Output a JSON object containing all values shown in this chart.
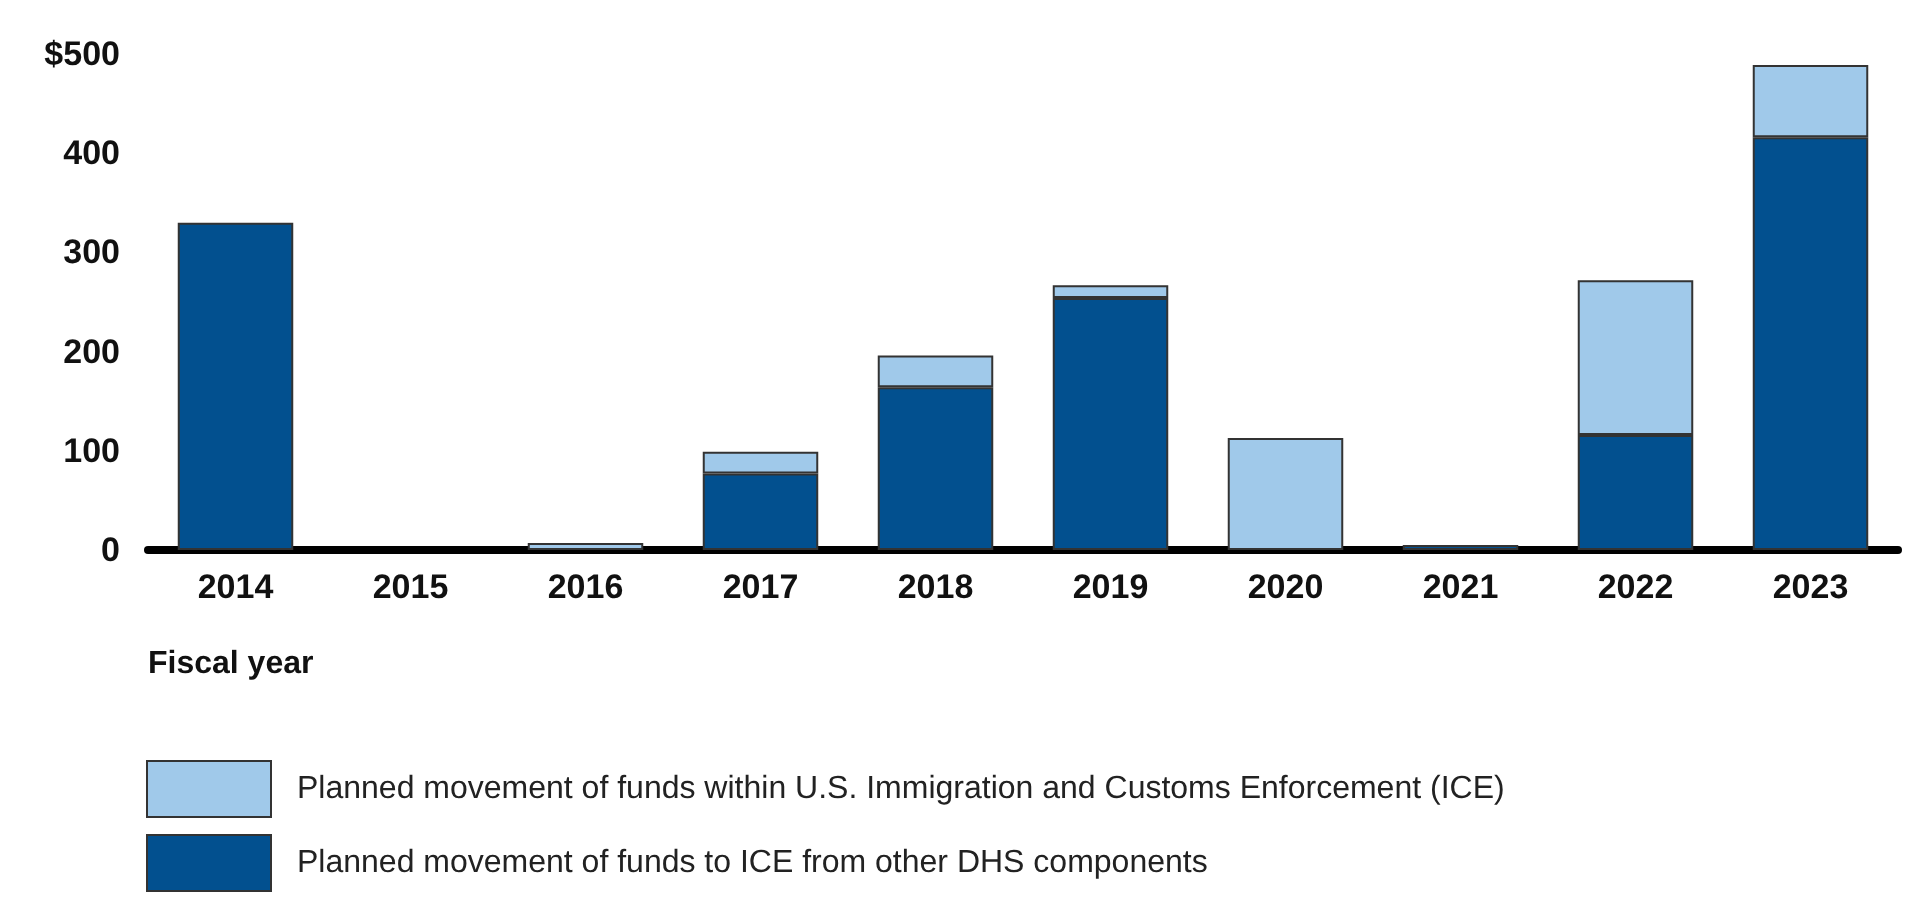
{
  "chart_data": {
    "type": "bar",
    "stacked": true,
    "xlabel": "Fiscal year",
    "categories": [
      "2014",
      "2015",
      "2016",
      "2017",
      "2018",
      "2019",
      "2020",
      "2021",
      "2022",
      "2023"
    ],
    "series": [
      {
        "name": "Planned movement of funds to ICE from other DHS components",
        "color": "#02508f",
        "values": [
          330,
          0,
          0,
          77,
          164,
          254,
          0,
          5,
          116,
          416
        ]
      },
      {
        "name": "Planned movement of funds within U.S. Immigration and Customs Enforcement (ICE)",
        "color": "#a0c9ea",
        "values": [
          0,
          0,
          7,
          22,
          32,
          13,
          113,
          0,
          156,
          73
        ]
      }
    ],
    "ylim": [
      0,
      500
    ],
    "yticks": [
      0,
      100,
      200,
      300,
      400,
      {
        "value": 500,
        "label": "$500"
      }
    ],
    "grid": false,
    "legend": "bottom left"
  }
}
